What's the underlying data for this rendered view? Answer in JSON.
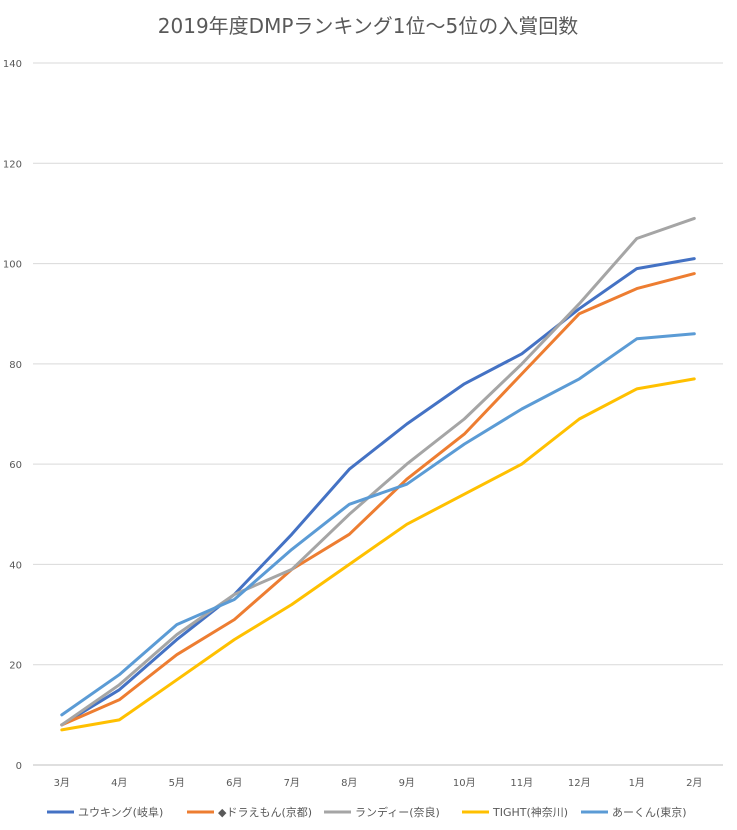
{
  "chart_data": {
    "type": "line",
    "title": "2019年度DMPランキング1位～5位の入賞回数",
    "categories": [
      "3月",
      "4月",
      "5月",
      "6月",
      "7月",
      "8月",
      "9月",
      "10月",
      "11月",
      "12月",
      "1月",
      "2月"
    ],
    "ylim": [
      0,
      140
    ],
    "yticks": [
      0,
      20,
      40,
      60,
      80,
      100,
      120,
      140
    ],
    "grid": true,
    "legend_position": "bottom",
    "series": [
      {
        "name": "ユウキング(岐阜)",
        "color": "#4472c4",
        "values": [
          8,
          15,
          25,
          34,
          46,
          59,
          68,
          76,
          82,
          91,
          99,
          101
        ]
      },
      {
        "name": "◆ドラえもん(京都)",
        "color": "#ed7d31",
        "values": [
          8,
          13,
          22,
          29,
          39,
          46,
          57,
          66,
          78,
          90,
          95,
          98
        ]
      },
      {
        "name": "ランディー(奈良)",
        "color": "#a5a5a5",
        "values": [
          8,
          16,
          26,
          34,
          39,
          50,
          60,
          69,
          80,
          92,
          105,
          109
        ]
      },
      {
        "name": "TIGHT(神奈川)",
        "color": "#ffc000",
        "values": [
          7,
          9,
          17,
          25,
          32,
          40,
          48,
          54,
          60,
          69,
          75,
          77
        ]
      },
      {
        "name": "あーくん(東京)",
        "color": "#5b9bd5",
        "values": [
          10,
          18,
          28,
          33,
          43,
          52,
          56,
          64,
          71,
          77,
          85,
          86
        ]
      }
    ]
  }
}
